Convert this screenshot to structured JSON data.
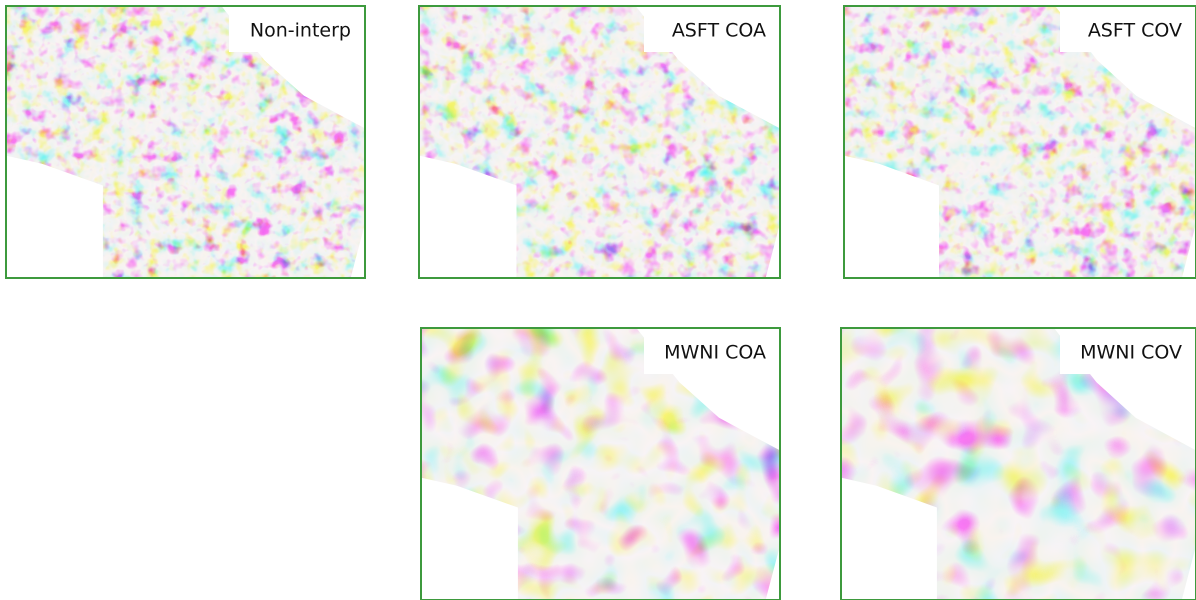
{
  "panels": [
    {
      "label": "Non-interp"
    },
    {
      "label": "ASFT COA"
    },
    {
      "label": "ASFT COV"
    },
    {
      "label": "MWNI COA"
    },
    {
      "label": "MWNI COV"
    }
  ]
}
